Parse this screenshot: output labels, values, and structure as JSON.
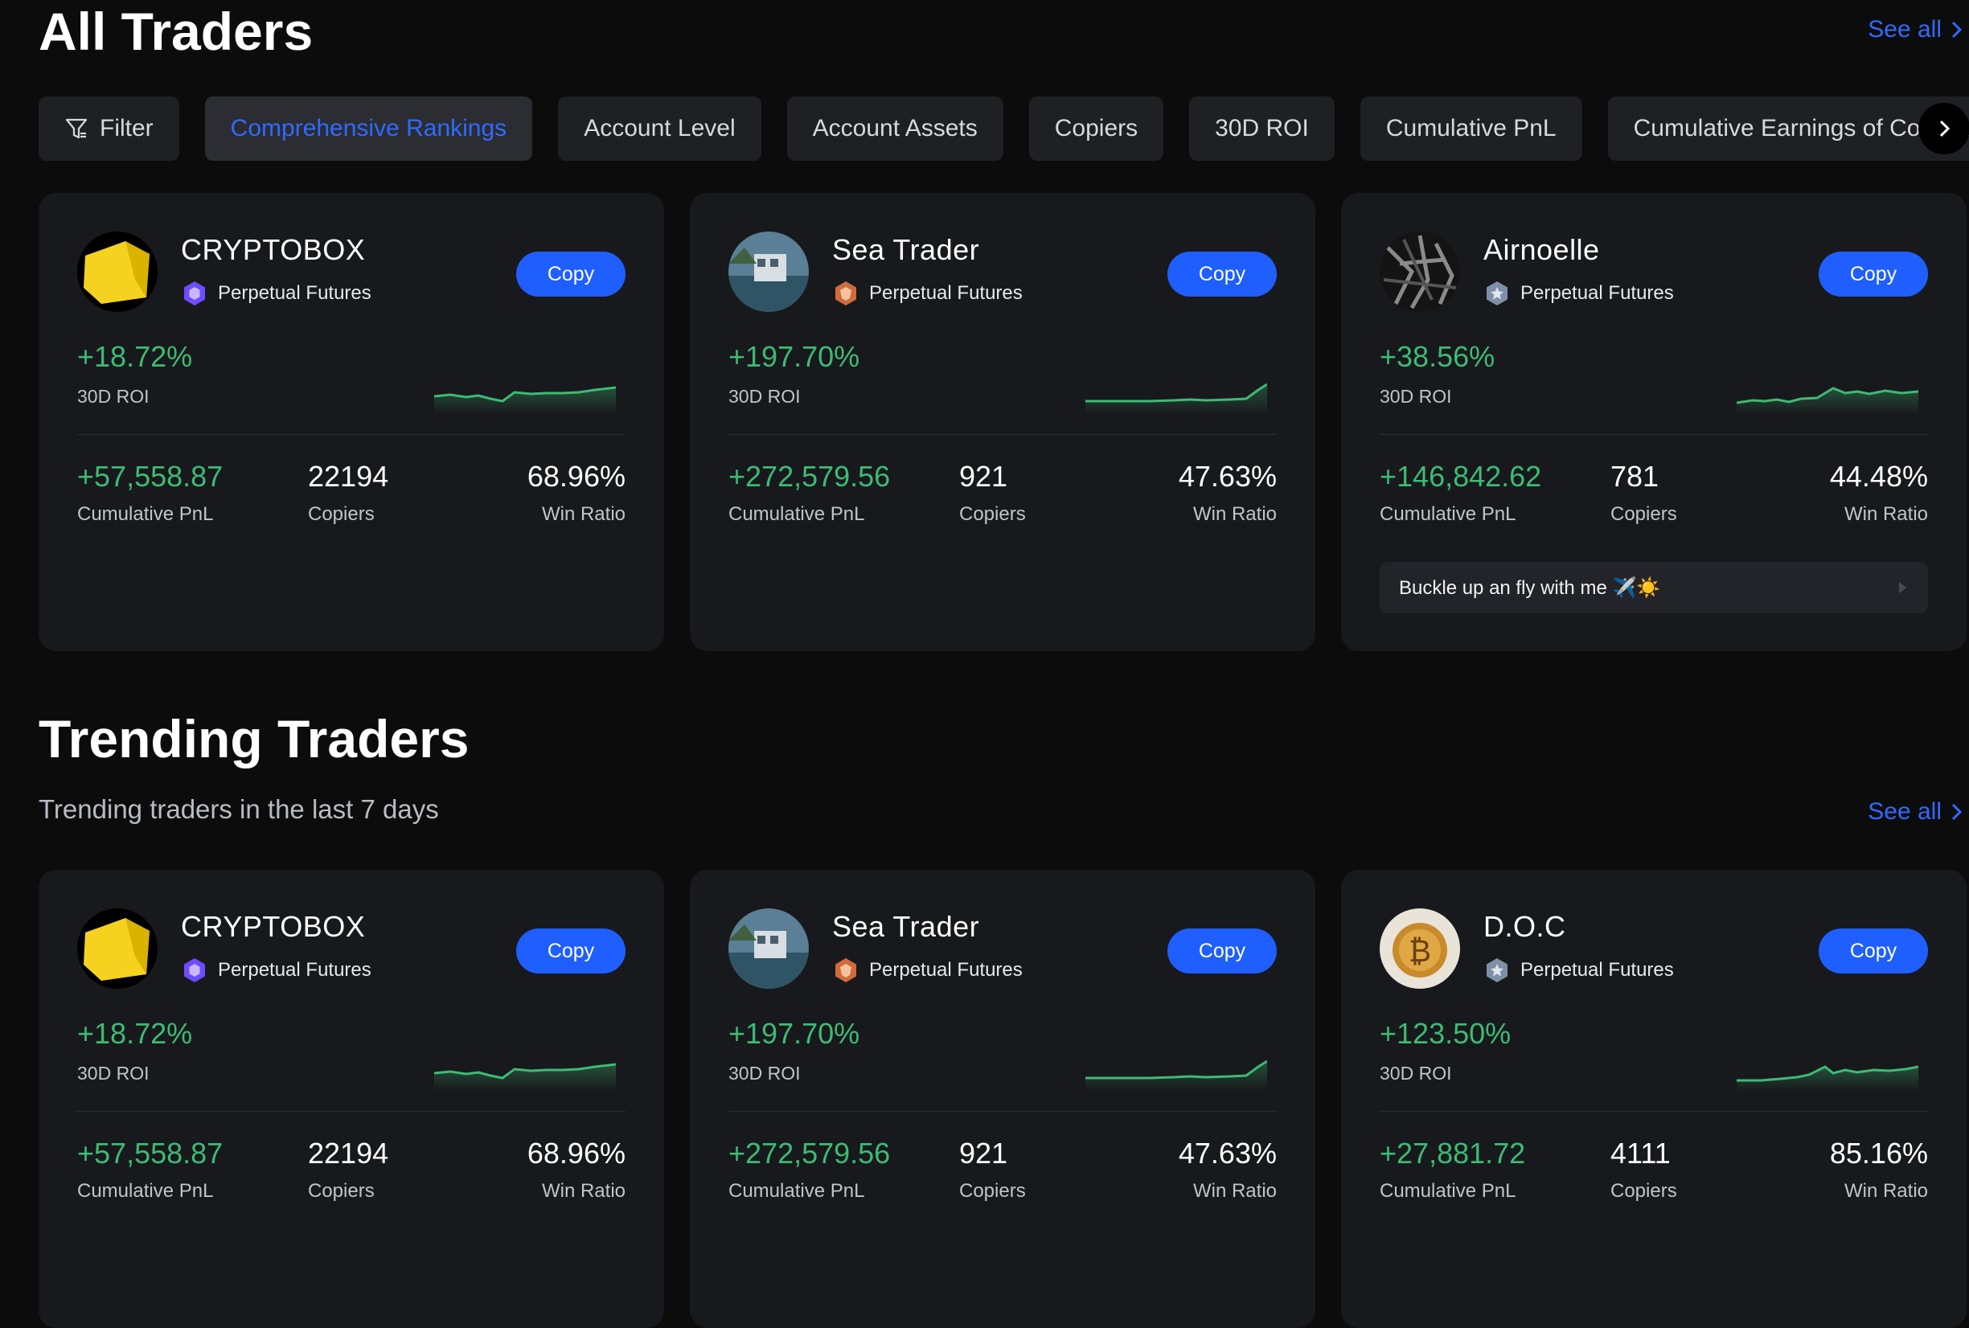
{
  "all_traders": {
    "title": "All Traders",
    "see_all": "See all",
    "tabs": [
      {
        "label": "Filter",
        "icon": "filter-icon"
      },
      {
        "label": "Comprehensive Rankings",
        "active": true
      },
      {
        "label": "Account Level"
      },
      {
        "label": "Account Assets"
      },
      {
        "label": "Copiers"
      },
      {
        "label": "30D ROI"
      },
      {
        "label": "Cumulative PnL"
      },
      {
        "label": "Cumulative Earnings of Copiers"
      }
    ],
    "cards": [
      {
        "name": "CRYPTOBOX",
        "badge": "Perpetual Futures",
        "copy": "Copy",
        "roi": "+18.72%",
        "roi_label": "30D ROI",
        "pnl": "+57,558.87",
        "pnl_label": "Cumulative PnL",
        "copiers": "22194",
        "copiers_label": "Copiers",
        "win": "68.96%",
        "win_label": "Win Ratio"
      },
      {
        "name": "Sea Trader",
        "badge": "Perpetual Futures",
        "copy": "Copy",
        "roi": "+197.70%",
        "roi_label": "30D ROI",
        "pnl": "+272,579.56",
        "pnl_label": "Cumulative PnL",
        "copiers": "921",
        "copiers_label": "Copiers",
        "win": "47.63%",
        "win_label": "Win Ratio"
      },
      {
        "name": "Airnoelle",
        "badge": "Perpetual Futures",
        "copy": "Copy",
        "roi": "+38.56%",
        "roi_label": "30D ROI",
        "pnl": "+146,842.62",
        "pnl_label": "Cumulative PnL",
        "copiers": "781",
        "copiers_label": "Copiers",
        "win": "44.48%",
        "win_label": "Win Ratio",
        "bio": "Buckle up an fly with me ✈️☀️"
      }
    ]
  },
  "trending_traders": {
    "title": "Trending Traders",
    "subtitle": "Trending traders in the last 7 days",
    "see_all": "See all",
    "cards": [
      {
        "name": "CRYPTOBOX",
        "badge": "Perpetual Futures",
        "copy": "Copy",
        "roi": "+18.72%",
        "roi_label": "30D ROI",
        "pnl": "+57,558.87",
        "pnl_label": "Cumulative PnL",
        "copiers": "22194",
        "copiers_label": "Copiers",
        "win": "68.96%",
        "win_label": "Win Ratio"
      },
      {
        "name": "Sea Trader",
        "badge": "Perpetual Futures",
        "copy": "Copy",
        "roi": "+197.70%",
        "roi_label": "30D ROI",
        "pnl": "+272,579.56",
        "pnl_label": "Cumulative PnL",
        "copiers": "921",
        "copiers_label": "Copiers",
        "win": "47.63%",
        "win_label": "Win Ratio"
      },
      {
        "name": "D.O.C",
        "badge": "Perpetual Futures",
        "copy": "Copy",
        "roi": "+123.50%",
        "roi_label": "30D ROI",
        "pnl": "+27,881.72",
        "pnl_label": "Cumulative PnL",
        "copiers": "4111",
        "copiers_label": "Copiers",
        "win": "85.16%",
        "win_label": "Win Ratio"
      }
    ]
  },
  "colors": {
    "accent": "#1f5fff",
    "positive": "#3dbb74",
    "card_bg": "#18191c"
  }
}
